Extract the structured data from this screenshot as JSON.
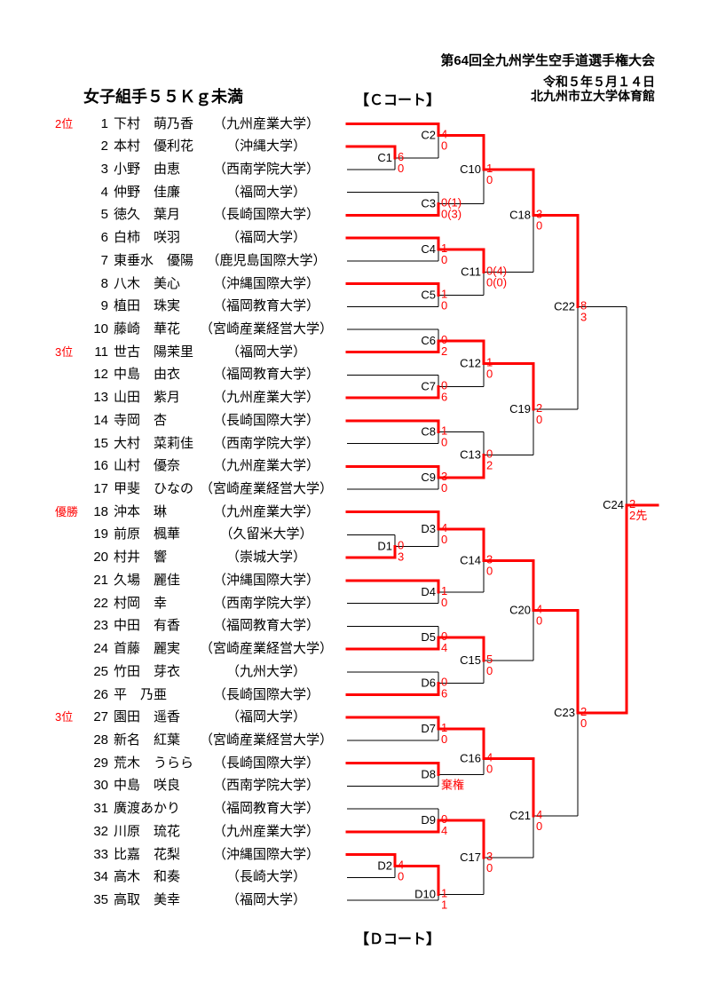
{
  "header": {
    "line1": "第64回全九州学生空手道選手権大会",
    "line2": "令和５年５月１４日",
    "line3": "北九州市立大学体育館"
  },
  "event": {
    "weight_class": "女子組手５５Ｋｇ未満",
    "court_top": "【Ｃコート】",
    "court_bottom": "【Ｄコート】"
  },
  "colors": {
    "accent_red": "#ff0000",
    "line_black": "#000000",
    "background": "#ffffff"
  },
  "rank_labels": [
    {
      "row": 1,
      "label": "2位"
    },
    {
      "row": 11,
      "label": "3位"
    },
    {
      "row": 18,
      "label": "優勝"
    },
    {
      "row": 27,
      "label": "3位"
    }
  ],
  "players": [
    {
      "no": "1",
      "name": "下村　萌乃香",
      "university": "（九州産業大学）"
    },
    {
      "no": "2",
      "name": "本村　優利花",
      "university": "（沖縄大学）"
    },
    {
      "no": "3",
      "name": "小野　由恵",
      "university": "（西南学院大学）"
    },
    {
      "no": "4",
      "name": "仲野　佳廉",
      "university": "（福岡大学）"
    },
    {
      "no": "5",
      "name": "徳久　葉月",
      "university": "（長崎国際大学）"
    },
    {
      "no": "6",
      "name": "白柿　咲羽",
      "university": "（福岡大学）"
    },
    {
      "no": "7",
      "name": "東垂水　優陽",
      "university": "（鹿児島国際大学）"
    },
    {
      "no": "8",
      "name": "八木　美心",
      "university": "（沖縄国際大学）"
    },
    {
      "no": "9",
      "name": "植田　珠実",
      "university": "（福岡教育大学）"
    },
    {
      "no": "10",
      "name": "藤崎　華花",
      "university": "（宮崎産業経営大学）"
    },
    {
      "no": "11",
      "name": "世古　陽茉里",
      "university": "（福岡大学）"
    },
    {
      "no": "12",
      "name": "中島　由衣",
      "university": "（福岡教育大学）"
    },
    {
      "no": "13",
      "name": "山田　紫月",
      "university": "（九州産業大学）"
    },
    {
      "no": "14",
      "name": "寺岡　杏",
      "university": "（長崎国際大学）"
    },
    {
      "no": "15",
      "name": "大村　菜莉佳",
      "university": "（西南学院大学）"
    },
    {
      "no": "16",
      "name": "山村　優奈",
      "university": "（九州産業大学）"
    },
    {
      "no": "17",
      "name": "甲斐　ひなの",
      "university": "（宮崎産業経営大学）"
    },
    {
      "no": "18",
      "name": "沖本　琳",
      "university": "（九州産業大学）"
    },
    {
      "no": "19",
      "name": "前原　楓華",
      "university": "（久留米大学）"
    },
    {
      "no": "20",
      "name": "村井　響",
      "university": "（崇城大学）"
    },
    {
      "no": "21",
      "name": "久場　麗佳",
      "university": "（沖縄国際大学）"
    },
    {
      "no": "22",
      "name": "村岡　幸",
      "university": "（西南学院大学）"
    },
    {
      "no": "23",
      "name": "中田　有香",
      "university": "（福岡教育大学）"
    },
    {
      "no": "24",
      "name": "首藤　麗実",
      "university": "（宮崎産業経営大学）"
    },
    {
      "no": "25",
      "name": "竹田　芽衣",
      "university": "（九州大学）"
    },
    {
      "no": "26",
      "name": "平　乃亜",
      "university": "（長崎国際大学）"
    },
    {
      "no": "27",
      "name": "園田　遥香",
      "university": "（福岡大学）"
    },
    {
      "no": "28",
      "name": "新名　紅葉",
      "university": "（宮崎産業経営大学）"
    },
    {
      "no": "29",
      "name": "荒木　うらら",
      "university": "（長崎国際大学）"
    },
    {
      "no": "30",
      "name": "中島　咲良",
      "university": "（西南学院大学）"
    },
    {
      "no": "31",
      "name": "廣渡あかり",
      "university": "（福岡教育大学）"
    },
    {
      "no": "32",
      "name": "川原　琉花",
      "university": "（九州産業大学）"
    },
    {
      "no": "33",
      "name": "比嘉　花梨",
      "university": "（沖縄国際大学）"
    },
    {
      "no": "34",
      "name": "高木　和奏",
      "university": "（長崎大学）"
    },
    {
      "no": "35",
      "name": "高取　美幸",
      "university": "（福岡大学）"
    }
  ],
  "bracket": {
    "geometry": {
      "row0": 139.5,
      "row_h": 25.72,
      "line_start": 391,
      "cols": {
        "A": 445,
        "B": 494,
        "C": 545,
        "D": 601,
        "E": 651,
        "F": 706
      },
      "exit_end": 741,
      "red_width": 3,
      "black_width": 1,
      "label_font": 13,
      "score_font": 13
    },
    "matches": [
      {
        "code": "C1",
        "col": "A",
        "top": "P2",
        "bottom": "P3",
        "score_top": "6",
        "score_bottom": "0",
        "winner": "top"
      },
      {
        "code": "C2",
        "col": "B",
        "top": "P1",
        "bottom": "C1",
        "score_top": "4",
        "score_bottom": "0",
        "winner": "top",
        "j": 0.5
      },
      {
        "code": "C3",
        "col": "B",
        "top": "P4",
        "bottom": "P5",
        "score_top": "0(1)",
        "score_bottom": "0(3)",
        "winner": "bottom"
      },
      {
        "code": "C10",
        "col": "C",
        "top": "C2",
        "bottom": "C3",
        "score_top": "1",
        "score_bottom": "0",
        "winner": "top"
      },
      {
        "code": "C4",
        "col": "B",
        "top": "P6",
        "bottom": "P7",
        "score_top": "1",
        "score_bottom": "0",
        "winner": "top"
      },
      {
        "code": "C5",
        "col": "B",
        "top": "P8",
        "bottom": "P9",
        "score_top": "1",
        "score_bottom": "0",
        "winner": "top"
      },
      {
        "code": "C11",
        "col": "C",
        "top": "C4",
        "bottom": "C5",
        "score_top": "0(4)",
        "score_bottom": "0(0)",
        "winner": "top"
      },
      {
        "code": "C18",
        "col": "D",
        "top": "C10",
        "bottom": "C11",
        "score_top": "3",
        "score_bottom": "0",
        "winner": "top",
        "j": 4.0
      },
      {
        "code": "C6",
        "col": "B",
        "top": "P10",
        "bottom": "P11",
        "score_top": "0",
        "score_bottom": "2",
        "winner": "bottom"
      },
      {
        "code": "C7",
        "col": "B",
        "top": "P12",
        "bottom": "P13",
        "score_top": "0",
        "score_bottom": "6",
        "winner": "bottom"
      },
      {
        "code": "C12",
        "col": "C",
        "top": "C6",
        "bottom": "C7",
        "score_top": "1",
        "score_bottom": "0",
        "winner": "top"
      },
      {
        "code": "C8",
        "col": "B",
        "top": "P14",
        "bottom": "P15",
        "score_top": "1",
        "score_bottom": "0",
        "winner": "top"
      },
      {
        "code": "C9",
        "col": "B",
        "top": "P16",
        "bottom": "P17",
        "score_top": "3",
        "score_bottom": "0",
        "winner": "top"
      },
      {
        "code": "C13",
        "col": "C",
        "top": "C8",
        "bottom": "C9",
        "score_top": "0",
        "score_bottom": "2",
        "winner": "bottom"
      },
      {
        "code": "C19",
        "col": "D",
        "top": "C12",
        "bottom": "C13",
        "score_top": "2",
        "score_bottom": "0",
        "winner": "top"
      },
      {
        "code": "C22",
        "col": "E",
        "top": "C18",
        "bottom": "C19",
        "score_top": "8",
        "score_bottom": "3",
        "winner": "top",
        "j": 8.0
      },
      {
        "code": "D1",
        "col": "A",
        "top": "P19",
        "bottom": "P20",
        "score_top": "0",
        "score_bottom": "3",
        "winner": "bottom"
      },
      {
        "code": "D3",
        "col": "B",
        "top": "P18",
        "bottom": "D1",
        "score_top": "4",
        "score_bottom": "0",
        "winner": "top"
      },
      {
        "code": "D4",
        "col": "B",
        "top": "P21",
        "bottom": "P22",
        "score_top": "1",
        "score_bottom": "0",
        "winner": "top"
      },
      {
        "code": "C14",
        "col": "C",
        "top": "D3",
        "bottom": "D4",
        "score_top": "3",
        "score_bottom": "0",
        "winner": "top"
      },
      {
        "code": "D5",
        "col": "B",
        "top": "P23",
        "bottom": "P24",
        "score_top": "0",
        "score_bottom": "4",
        "winner": "bottom"
      },
      {
        "code": "D6",
        "col": "B",
        "top": "P25",
        "bottom": "P26",
        "score_top": "0",
        "score_bottom": "6",
        "winner": "bottom"
      },
      {
        "code": "C15",
        "col": "C",
        "top": "D5",
        "bottom": "D6",
        "score_top": "5",
        "score_bottom": "0",
        "winner": "top"
      },
      {
        "code": "C20",
        "col": "D",
        "top": "C14",
        "bottom": "C15",
        "score_top": "4",
        "score_bottom": "0",
        "winner": "top"
      },
      {
        "code": "D7",
        "col": "B",
        "top": "P27",
        "bottom": "P28",
        "score_top": "1",
        "score_bottom": "0",
        "winner": "top"
      },
      {
        "code": "D8",
        "col": "B",
        "top": "P29",
        "bottom": "P30",
        "score_top": "",
        "score_bottom": "棄権",
        "winner": "top"
      },
      {
        "code": "C16",
        "col": "C",
        "top": "D7",
        "bottom": "D8",
        "score_top": "4",
        "score_bottom": "0",
        "winner": "top",
        "j": 27.8
      },
      {
        "code": "D9",
        "col": "B",
        "top": "P31",
        "bottom": "P32",
        "score_top": "0",
        "score_bottom": "4",
        "winner": "bottom"
      },
      {
        "code": "D2",
        "col": "A",
        "top": "P33",
        "bottom": "P34",
        "score_top": "4",
        "score_bottom": "0",
        "winner": "top"
      },
      {
        "code": "D10",
        "col": "B",
        "top": "D2",
        "bottom": "P35",
        "score_top": "1",
        "score_bottom": "1",
        "winner": "top",
        "j": 33.75
      },
      {
        "code": "C17",
        "col": "C",
        "top": "D9",
        "bottom": "D10",
        "score_top": "3",
        "score_bottom": "0",
        "winner": "top"
      },
      {
        "code": "C21",
        "col": "D",
        "top": "C16",
        "bottom": "C17",
        "score_top": "4",
        "score_bottom": "0",
        "winner": "top",
        "j": 30.3
      },
      {
        "code": "C23",
        "col": "E",
        "top": "C20",
        "bottom": "C21",
        "score_top": "2",
        "score_bottom": "0",
        "winner": "top"
      },
      {
        "code": "C24",
        "col": "F",
        "top": "C22",
        "bottom": "C23",
        "score_top": "2",
        "score_bottom": "2先",
        "winner": "bottom",
        "j": 16.7,
        "final": true
      }
    ]
  }
}
